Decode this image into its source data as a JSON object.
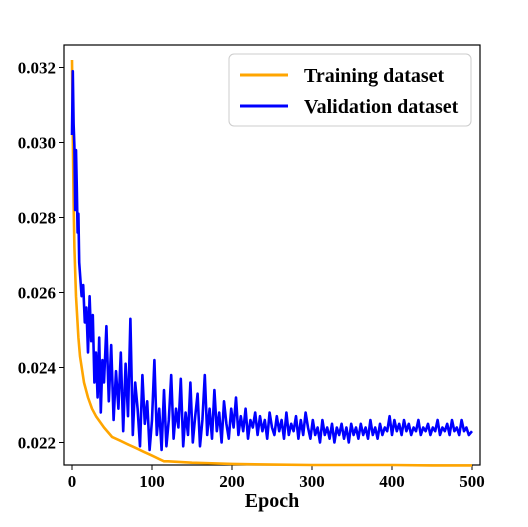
{
  "chart_data": {
    "type": "line",
    "title": "",
    "xlabel": "Epoch",
    "ylabel": "",
    "xlim": [
      -10,
      510
    ],
    "ylim": [
      0.0214,
      0.0326
    ],
    "xticks": [
      0,
      100,
      200,
      300,
      400,
      500
    ],
    "yticks": [
      0.022,
      0.024,
      0.026,
      0.028,
      0.03,
      0.032
    ],
    "ytick_labels": [
      "0.022",
      "0.024",
      "0.026",
      "0.028",
      "0.030",
      "0.032"
    ],
    "grid": false,
    "legend": "top-right",
    "series": [
      {
        "name": "Training dataset",
        "color": "#FFA500",
        "x": [
          0,
          1,
          2,
          3,
          5,
          8,
          10,
          15,
          20,
          25,
          30,
          40,
          50,
          60,
          70,
          80,
          90,
          100,
          110,
          115,
          120,
          150,
          200,
          250,
          300,
          350,
          400,
          450,
          500
        ],
        "y": [
          0.0322,
          0.0302,
          0.0284,
          0.0272,
          0.0259,
          0.0248,
          0.0243,
          0.0236,
          0.0232,
          0.0229,
          0.0227,
          0.0224,
          0.02215,
          0.02205,
          0.02195,
          0.02185,
          0.02175,
          0.02165,
          0.02155,
          0.0215,
          0.0215,
          0.02146,
          0.02143,
          0.02141,
          0.0214,
          0.0214,
          0.0214,
          0.02139,
          0.02139
        ]
      },
      {
        "name": "Validation dataset",
        "color": "#0000FF",
        "x": [
          0,
          1,
          2,
          3,
          4,
          5,
          6,
          7,
          8,
          9,
          10,
          12,
          14,
          16,
          18,
          20,
          22,
          24,
          26,
          28,
          30,
          32,
          34,
          36,
          38,
          40,
          43,
          46,
          49,
          52,
          55,
          58,
          61,
          64,
          67,
          70,
          73,
          76,
          79,
          82,
          85,
          88,
          91,
          94,
          97,
          100,
          103,
          106,
          109,
          112,
          115,
          118,
          121,
          124,
          127,
          130,
          133,
          136,
          139,
          142,
          145,
          148,
          151,
          154,
          157,
          160,
          163,
          166,
          169,
          172,
          175,
          178,
          181,
          184,
          187,
          190,
          193,
          196,
          199,
          202,
          205,
          208,
          211,
          214,
          217,
          220,
          223,
          226,
          229,
          232,
          235,
          238,
          241,
          244,
          247,
          250,
          253,
          256,
          259,
          262,
          265,
          268,
          271,
          274,
          277,
          280,
          283,
          286,
          289,
          292,
          295,
          298,
          301,
          304,
          307,
          310,
          313,
          316,
          319,
          322,
          325,
          328,
          331,
          334,
          337,
          340,
          343,
          346,
          349,
          352,
          355,
          358,
          361,
          364,
          367,
          370,
          373,
          376,
          379,
          382,
          385,
          388,
          391,
          394,
          397,
          400,
          403,
          406,
          409,
          412,
          415,
          418,
          421,
          424,
          427,
          430,
          433,
          436,
          439,
          442,
          445,
          448,
          451,
          454,
          457,
          460,
          463,
          466,
          469,
          472,
          475,
          478,
          481,
          484,
          487,
          490,
          493,
          496,
          500
        ],
        "y": [
          0.0302,
          0.0319,
          0.0305,
          0.0299,
          0.0282,
          0.0298,
          0.0288,
          0.0276,
          0.0281,
          0.0268,
          0.0265,
          0.0259,
          0.0262,
          0.0252,
          0.0256,
          0.0244,
          0.0259,
          0.0247,
          0.0254,
          0.0236,
          0.0244,
          0.0232,
          0.0248,
          0.0228,
          0.0242,
          0.0236,
          0.0251,
          0.0231,
          0.0246,
          0.0226,
          0.0239,
          0.0229,
          0.0244,
          0.0223,
          0.0241,
          0.0227,
          0.0253,
          0.0222,
          0.0236,
          0.0229,
          0.0219,
          0.0238,
          0.0225,
          0.0231,
          0.0218,
          0.0226,
          0.0242,
          0.0222,
          0.0229,
          0.0218,
          0.0234,
          0.0219,
          0.0226,
          0.0238,
          0.0221,
          0.0229,
          0.0224,
          0.0237,
          0.0219,
          0.0228,
          0.0222,
          0.0236,
          0.022,
          0.0227,
          0.0233,
          0.0219,
          0.0226,
          0.0238,
          0.0222,
          0.0229,
          0.0221,
          0.0234,
          0.0223,
          0.0228,
          0.022,
          0.0231,
          0.0225,
          0.0221,
          0.0229,
          0.0224,
          0.0232,
          0.0222,
          0.0227,
          0.0223,
          0.0229,
          0.0221,
          0.0226,
          0.0224,
          0.0228,
          0.0222,
          0.0227,
          0.0223,
          0.0226,
          0.0221,
          0.0228,
          0.0224,
          0.0222,
          0.0227,
          0.0223,
          0.0226,
          0.0221,
          0.0228,
          0.0222,
          0.0225,
          0.0223,
          0.0227,
          0.0221,
          0.0226,
          0.0222,
          0.0228,
          0.0224,
          0.0221,
          0.0226,
          0.0222,
          0.0224,
          0.022,
          0.0226,
          0.0222,
          0.0224,
          0.0221,
          0.0225,
          0.022,
          0.0224,
          0.0222,
          0.0225,
          0.0221,
          0.0224,
          0.022,
          0.0225,
          0.0222,
          0.0224,
          0.0221,
          0.0225,
          0.0222,
          0.0224,
          0.0221,
          0.0226,
          0.0222,
          0.0224,
          0.0221,
          0.0225,
          0.0222,
          0.0224,
          0.0223,
          0.0227,
          0.0222,
          0.0226,
          0.0223,
          0.0225,
          0.0222,
          0.0226,
          0.0223,
          0.0225,
          0.0222,
          0.0224,
          0.0223,
          0.0226,
          0.0222,
          0.0224,
          0.0223,
          0.0225,
          0.0222,
          0.0224,
          0.0223,
          0.0226,
          0.0222,
          0.0224,
          0.0223,
          0.0225,
          0.0222,
          0.0226,
          0.0223,
          0.0224,
          0.0222,
          0.0226,
          0.0223,
          0.0224,
          0.0222,
          0.0223
        ]
      }
    ]
  }
}
